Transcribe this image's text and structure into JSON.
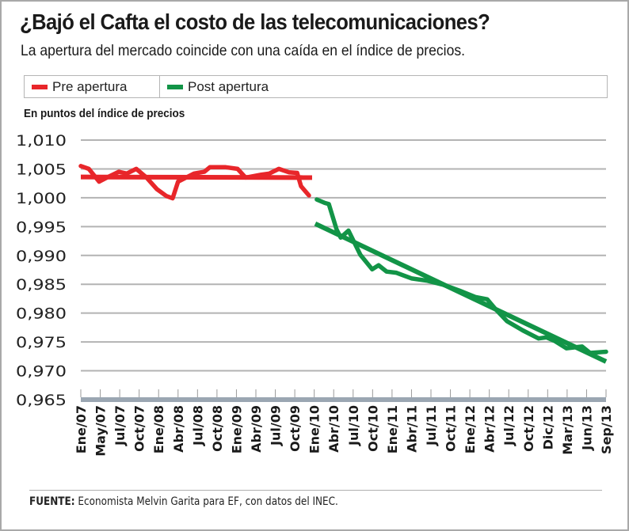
{
  "header": {
    "title": "¿Bajó el Cafta el costo de las telecomunicaciones?",
    "subtitle": "La apertura del mercado coincide con una caída en el índice de precios."
  },
  "legend": [
    {
      "label": "Pre apertura",
      "color": "#e8262a"
    },
    {
      "label": "Post apertura",
      "color": "#129447"
    }
  ],
  "unit_label": "En puntos del índice de precios",
  "footer": {
    "source_label": "FUENTE:",
    "source_text": " Economista Melvin Garita para EF, con datos del INEC."
  },
  "colors": {
    "pre": "#e8262a",
    "post": "#129447",
    "grid": "#b3b3b3",
    "axis_band": "#9aa6b2"
  },
  "chart_data": {
    "type": "line",
    "title": "¿Bajó el Cafta el costo de las telecomunicaciones?",
    "subtitle": "La apertura del mercado coincide con una caída en el índice de precios.",
    "xlabel": "",
    "ylabel": "En puntos del índice de precios",
    "ylim": [
      0.965,
      1.01
    ],
    "yticks": [
      1.01,
      1.005,
      1.0,
      0.995,
      0.99,
      0.985,
      0.98,
      0.975,
      0.97,
      0.965
    ],
    "ytick_labels": [
      "1,010",
      "1,005",
      "1,000",
      "0,995",
      "0,990",
      "0,985",
      "0,980",
      "0,975",
      "0,970",
      "0,965"
    ],
    "categories": [
      "Ene/07",
      "May/07",
      "Jul/07",
      "Oct/07",
      "Ene/08",
      "Abr/08",
      "Jul/08",
      "Oct/08",
      "Ene/09",
      "Abr/09",
      "Jul/09",
      "Oct/09",
      "Ene/10",
      "Abr/10",
      "Jul/10",
      "Oct/10",
      "Ene/11",
      "Abr/11",
      "Jul/11",
      "Oct/11",
      "Ene/12",
      "Abr/12",
      "Jul/12",
      "Oct/12",
      "Dic/12",
      "Mar/13",
      "Jun/13",
      "Sep/13"
    ],
    "grid": true,
    "legend_position": "top",
    "series": [
      {
        "name": "Pre apertura",
        "color": "#e8262a",
        "x": [
          0,
          0.41,
          0.94,
          1.34,
          1.95,
          2.36,
          2.85,
          3.38,
          3.91,
          4.4,
          4.72,
          5.0,
          5.41,
          5.82,
          6.35,
          6.64,
          7.45,
          8.06,
          8.47,
          9.28,
          9.69,
          10.18,
          10.71,
          11.12,
          11.32,
          11.73
        ],
        "values": [
          1.0055,
          1.005,
          1.0028,
          1.0035,
          1.0045,
          1.0042,
          1.005,
          1.0035,
          1.0015,
          1.0003,
          0.9999,
          1.0028,
          1.0035,
          1.0042,
          1.0045,
          1.0053,
          1.0053,
          1.005,
          1.0035,
          1.004,
          1.0042,
          1.005,
          1.0044,
          1.0043,
          1.002,
          1.0004
        ]
      },
      {
        "name": "Post apertura",
        "color": "#129447",
        "x": [
          12.13,
          12.54,
          12.75,
          13.15,
          13.36,
          13.76,
          14.37,
          14.98,
          15.31,
          15.72,
          16.21,
          17.02,
          17.83,
          18.65,
          19.46,
          20.28,
          20.89,
          21.29,
          21.91,
          22.72,
          23.53,
          23.94,
          24.35,
          24.96,
          25.77,
          26.18,
          27.0
        ],
        "values": [
          0.9997,
          0.9991,
          0.9989,
          0.9945,
          0.9931,
          0.9943,
          0.9901,
          0.9876,
          0.9883,
          0.9872,
          0.987,
          0.986,
          0.9856,
          0.9849,
          0.9839,
          0.9828,
          0.9824,
          0.9808,
          0.9786,
          0.977,
          0.9756,
          0.9758,
          0.9752,
          0.9739,
          0.9742,
          0.9731,
          0.9733
        ]
      }
    ],
    "trendlines": [
      {
        "name": "Pre apertura tendencia",
        "color": "#e8262a",
        "x": [
          0,
          11.89
        ],
        "values": [
          1.0036,
          1.0035
        ]
      },
      {
        "name": "Post apertura tendencia",
        "color": "#129447",
        "x": [
          12.05,
          27.0
        ],
        "values": [
          0.9955,
          0.9716
        ]
      }
    ]
  }
}
